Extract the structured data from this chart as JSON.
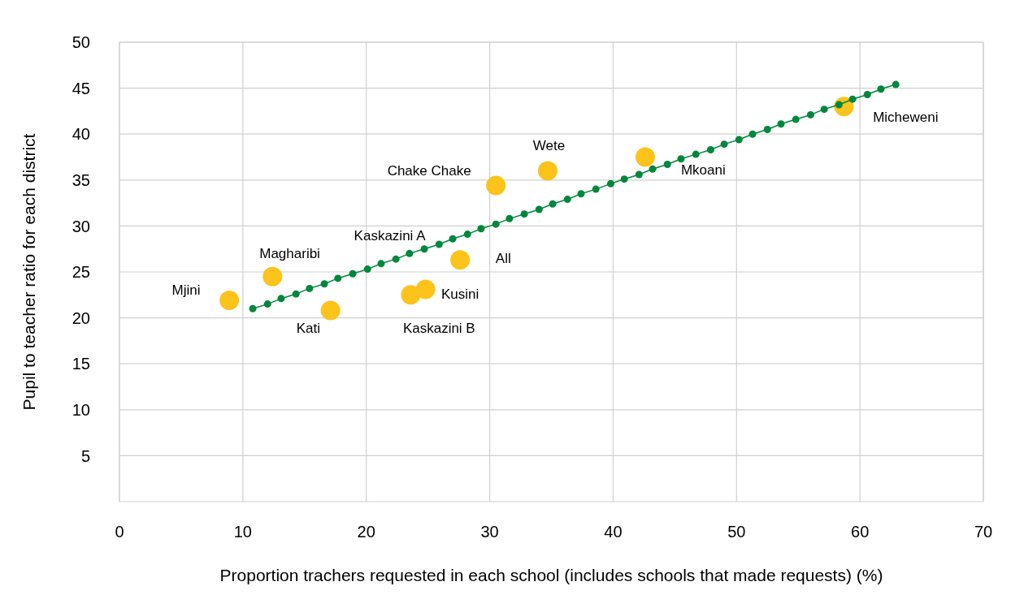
{
  "chart_data": {
    "type": "scatter",
    "xlabel": "Proportion trachers requested in each school (includes schools that made requests) (%)",
    "ylabel": "Pupil to teacher ratio for each district",
    "xlim": [
      0,
      70
    ],
    "xticks": [
      0,
      10,
      20,
      30,
      40,
      50,
      60,
      70
    ],
    "ylim": [
      0,
      50
    ],
    "yticks": [
      5,
      10,
      15,
      20,
      25,
      30,
      35,
      40,
      45,
      50
    ],
    "grid": true,
    "legend": false,
    "series": [
      {
        "type": "scatter",
        "color": "#fcc31b",
        "marker": "circle",
        "x": [
          8.9,
          12.4,
          17.1,
          23.6,
          24.8,
          27.6,
          30.5,
          34.7,
          42.6,
          58.7
        ],
        "values": [
          21.9,
          24.5,
          20.8,
          22.5,
          23.1,
          26.3,
          34.4,
          36.0,
          37.5,
          43.0
        ]
      },
      {
        "type": "line",
        "color": "#00873e",
        "marker": "circle",
        "x": [
          10.8,
          12.0,
          13.1,
          14.3,
          15.4,
          16.6,
          17.7,
          18.9,
          20.1,
          21.2,
          22.4,
          23.5,
          24.7,
          25.9,
          27.0,
          28.2,
          29.3,
          30.5,
          31.6,
          32.8,
          34.0,
          35.1,
          36.3,
          37.4,
          38.6,
          39.8,
          40.9,
          42.1,
          43.2,
          44.4,
          45.5,
          46.7,
          47.9,
          49.0,
          50.2,
          51.3,
          52.5,
          53.6,
          54.8,
          56.0,
          57.1,
          58.3,
          59.4,
          60.6,
          61.7,
          62.9
        ],
        "values": [
          21.0,
          21.5,
          22.1,
          22.6,
          23.2,
          23.7,
          24.3,
          24.8,
          25.3,
          25.9,
          26.4,
          27.0,
          27.5,
          28.0,
          28.6,
          29.1,
          29.7,
          30.2,
          30.8,
          31.3,
          31.8,
          32.4,
          32.9,
          33.5,
          34.0,
          34.6,
          35.1,
          35.6,
          36.2,
          36.7,
          37.3,
          37.8,
          38.3,
          38.9,
          39.4,
          40.0,
          40.5,
          41.1,
          41.6,
          42.1,
          42.7,
          43.2,
          43.8,
          44.3,
          44.9,
          45.4
        ]
      }
    ],
    "annotations": [
      "Mjini",
      "Magharibi",
      "Kati",
      "Kaskazini B",
      "Kusini",
      "All",
      "Kaskazini A",
      "Chake Chake",
      "Wete",
      "Mkoani",
      "Micheweni"
    ]
  }
}
